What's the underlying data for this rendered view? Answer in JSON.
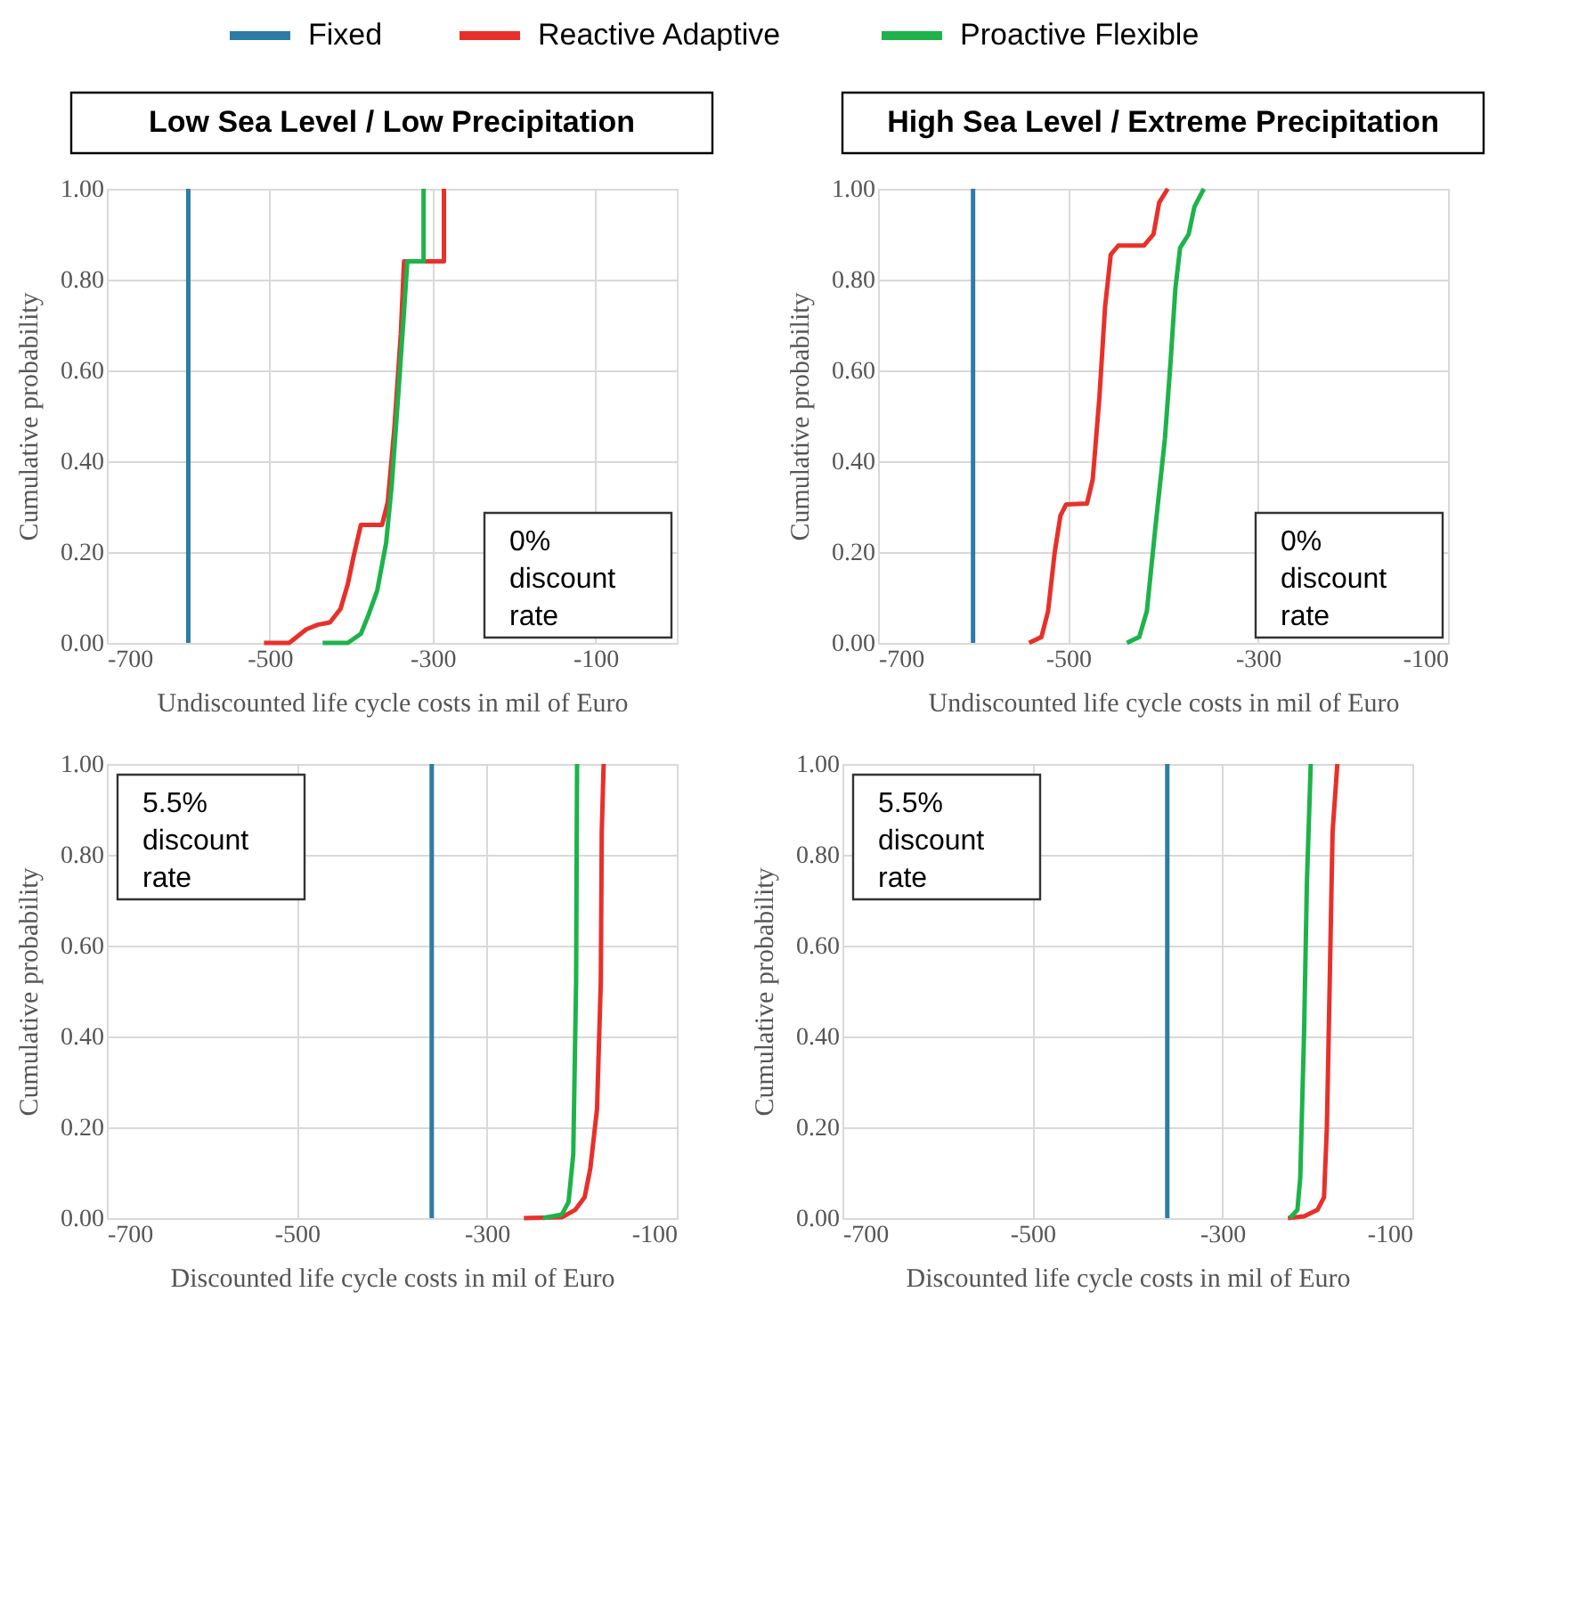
{
  "chart_data": [
    {
      "type": "line",
      "title": "Low Sea Level / Low Precipitation",
      "xlabel": "Undiscounted life cycle costs in mil of Euro",
      "ylabel": "Cumulative probability",
      "legend": "top",
      "grid": true,
      "line_style": "solid",
      "xlim": [
        -700,
        0
      ],
      "xticks": [
        -700,
        -500,
        -300,
        -100
      ],
      "ylim": [
        0,
        1
      ],
      "yticks": [
        {
          "value": 0,
          "label": "0.00"
        },
        {
          "value": 0.2,
          "label": "0.20"
        },
        {
          "value": 0.4,
          "label": "0.40"
        },
        {
          "value": 0.6,
          "label": "0.60"
        },
        {
          "value": 0.8,
          "label": "0.80"
        },
        {
          "value": 1,
          "label": "1.00"
        }
      ],
      "annotations": [
        "0% discount rate"
      ],
      "series": [
        {
          "name": "Fixed",
          "color": "#2e7ba6",
          "x": [
            -600,
            -600
          ],
          "values": [
            0,
            1
          ]
        },
        {
          "name": "Reactive Adaptive",
          "color": "#e8302a",
          "x": [
            -507,
            -476,
            -455,
            -441,
            -426,
            -413,
            -404,
            -397,
            -388,
            -362,
            -355,
            -347,
            -339,
            -335,
            -286,
            -286
          ],
          "values": [
            0,
            0,
            0.03,
            0.04,
            0.045,
            0.075,
            0.13,
            0.19,
            0.26,
            0.26,
            0.31,
            0.47,
            0.68,
            0.84,
            0.84,
            1.0
          ]
        },
        {
          "name": "Proactive Flexible",
          "color": "#1db34a",
          "x": [
            -435,
            -404,
            -388,
            -379,
            -368,
            -357,
            -350,
            -342,
            -335,
            -331,
            -311,
            -311
          ],
          "values": [
            0,
            0,
            0.02,
            0.06,
            0.115,
            0.22,
            0.35,
            0.55,
            0.73,
            0.84,
            0.84,
            1.0
          ]
        }
      ]
    },
    {
      "type": "line",
      "title": "High Sea Level / Extreme Precipitation",
      "xlabel": "Undiscounted life cycle costs in mil of Euro",
      "ylabel": "Cumulative probability",
      "grid": true,
      "line_style": "solid",
      "xlim": [
        -700,
        -100
      ],
      "xticks": [
        -700,
        -500,
        -300,
        -100
      ],
      "ylim": [
        0,
        1
      ],
      "yticks": [
        {
          "value": 0,
          "label": "0.00"
        },
        {
          "value": 0.2,
          "label": "0.20"
        },
        {
          "value": 0.4,
          "label": "0.40"
        },
        {
          "value": 0.6,
          "label": "0.60"
        },
        {
          "value": 0.8,
          "label": "0.80"
        },
        {
          "value": 1,
          "label": "1.00"
        }
      ],
      "annotations": [
        "0% discount rate"
      ],
      "series": [
        {
          "color": "#2e7ba6",
          "x": [
            -600,
            -600
          ],
          "values": [
            0,
            1
          ]
        },
        {
          "color": "#e8302a",
          "x": [
            -541,
            -528,
            -521,
            -514,
            -508,
            -502,
            -480,
            -474,
            -467,
            -461,
            -455,
            -447,
            -420,
            -410,
            -404,
            -395
          ],
          "values": [
            0,
            0.013,
            0.07,
            0.2,
            0.28,
            0.305,
            0.307,
            0.36,
            0.54,
            0.74,
            0.855,
            0.875,
            0.875,
            0.9,
            0.97,
            1.0
          ]
        },
        {
          "color": "#1db34a",
          "x": [
            -438,
            -425,
            -417,
            -408,
            -398,
            -392,
            -387,
            -382,
            -373,
            -367,
            -357
          ],
          "values": [
            0,
            0.013,
            0.07,
            0.255,
            0.45,
            0.62,
            0.78,
            0.87,
            0.9,
            0.96,
            1.0
          ]
        }
      ]
    },
    {
      "type": "line",
      "xlabel": "Discounted life cycle costs in mil of Euro",
      "ylabel": "Cumulative probability",
      "grid": true,
      "xlim": [
        -700,
        -100
      ],
      "xticks": [
        -700,
        -500,
        -300,
        -100
      ],
      "ylim": [
        0,
        1
      ],
      "yticks": [
        {
          "value": 0,
          "label": "0.00"
        },
        {
          "value": 0.2,
          "label": "0.20"
        },
        {
          "value": 0.4,
          "label": "0.40"
        },
        {
          "value": 0.6,
          "label": "0.60"
        },
        {
          "value": 0.8,
          "label": "0.80"
        },
        {
          "value": 1,
          "label": "1.00"
        }
      ],
      "annotations": [
        "5.5% discount rate"
      ],
      "line_style": "solid",
      "series": [
        {
          "color": "#2e7ba6",
          "x": [
            -358,
            -358
          ],
          "values": [
            0,
            1
          ]
        },
        {
          "color": "#e8302a",
          "x": [
            -261,
            -221,
            -207,
            -197,
            -191,
            -184,
            -180,
            -179,
            -177
          ],
          "values": [
            0,
            0.002,
            0.018,
            0.046,
            0.11,
            0.24,
            0.52,
            0.85,
            1.0
          ]
        },
        {
          "color": "#1db34a",
          "x": [
            -241,
            -221,
            -214,
            -209,
            -206,
            -205
          ],
          "values": [
            0,
            0.008,
            0.035,
            0.14,
            0.52,
            1.0
          ]
        }
      ]
    },
    {
      "type": "line",
      "xlabel": "Discounted life cycle costs in mil of Euro",
      "ylabel": "Cumulative probability",
      "grid": true,
      "xlim": [
        -700,
        -100
      ],
      "xticks": [
        -700,
        -500,
        -300,
        -100
      ],
      "ylim": [
        0,
        1
      ],
      "yticks": [
        {
          "value": 0,
          "label": "0.00"
        },
        {
          "value": 0.2,
          "label": "0.20"
        },
        {
          "value": 0.4,
          "label": "0.40"
        },
        {
          "value": 0.6,
          "label": "0.60"
        },
        {
          "value": 0.8,
          "label": "0.80"
        },
        {
          "value": 1,
          "label": "1.00"
        }
      ],
      "annotations": [
        "5.5% discount rate"
      ],
      "line_style": "solid",
      "series": [
        {
          "color": "#2e7ba6",
          "x": [
            -358,
            -358
          ],
          "values": [
            0,
            1
          ]
        },
        {
          "color": "#e8302a",
          "x": [
            -231,
            -214,
            -200,
            -193,
            -190,
            -187,
            -184,
            -179
          ],
          "values": [
            0,
            0.004,
            0.018,
            0.046,
            0.2,
            0.52,
            0.85,
            1.0
          ]
        },
        {
          "color": "#1db34a",
          "x": [
            -229,
            -221,
            -218,
            -214,
            -211,
            -207
          ],
          "values": [
            0,
            0.018,
            0.09,
            0.41,
            0.74,
            1.0
          ]
        }
      ]
    }
  ]
}
